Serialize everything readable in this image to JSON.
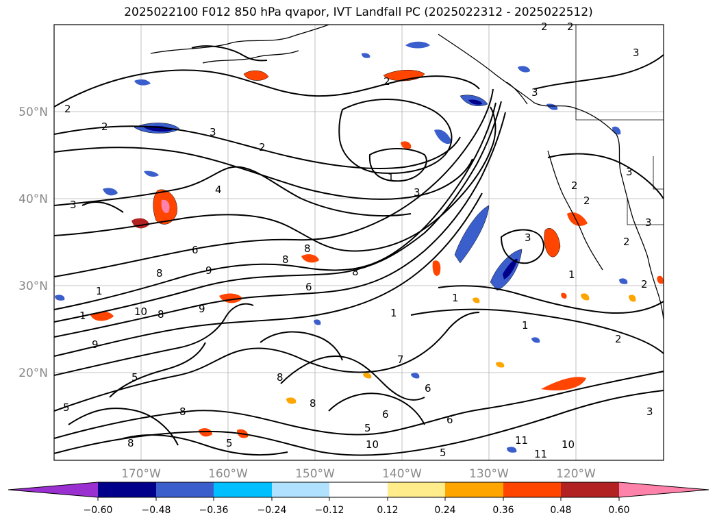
{
  "title": "2025022100 F012 850 hPa qvapor, IVT Landfall PC (2025022312 - 2025022512)",
  "map": {
    "lon_labels": [
      "170°W",
      "160°W",
      "150°W",
      "140°W",
      "130°W",
      "120°W"
    ],
    "lat_labels": [
      "50°N",
      "40°N",
      "30°N",
      "20°N"
    ],
    "contour_labels": [
      "2",
      "2",
      "3",
      "2",
      "3",
      "2",
      "3",
      "2",
      "2",
      "1",
      "3",
      "4",
      "3",
      "1",
      "2",
      "3",
      "6",
      "9",
      "8",
      "8",
      "8",
      "6",
      "1",
      "1",
      "9",
      "10",
      "8",
      "9",
      "7",
      "5",
      "6",
      "11",
      "10",
      "5",
      "1",
      "2",
      "2",
      "3",
      "2",
      "3",
      "2",
      "1",
      "1",
      "10",
      "5",
      "8",
      "8",
      "8",
      "8",
      "6",
      "8",
      "6",
      "5",
      "3",
      "11",
      "5"
    ],
    "colors": {
      "land_border": "#000000",
      "grid": "#b0b0b0",
      "contour": "#000000"
    }
  },
  "colorbar": {
    "ticks": [
      "−0.60",
      "−0.48",
      "−0.36",
      "−0.24",
      "−0.12",
      "0.12",
      "0.24",
      "0.36",
      "0.48",
      "0.60"
    ],
    "colors": [
      "#9b30d0",
      "#00008b",
      "#3a5fcd",
      "#00bfff",
      "#b0e2ff",
      "#ffffff",
      "#ffec8b",
      "#ffa500",
      "#ff4500",
      "#b22222",
      "#ff82ab"
    ]
  }
}
